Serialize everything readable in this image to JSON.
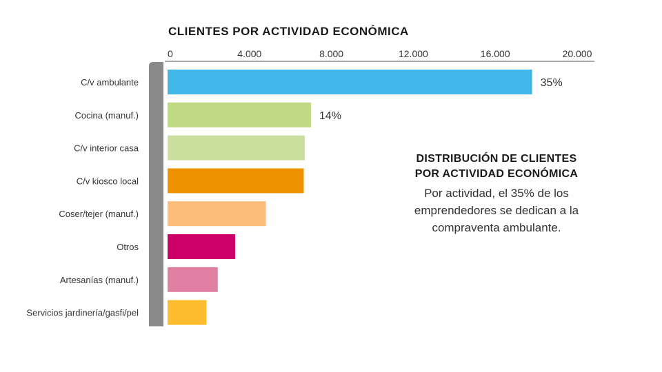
{
  "chart_data": {
    "type": "bar",
    "orientation": "horizontal",
    "title": "CLIENTES POR ACTIVIDAD ECONÓMICA",
    "xlabel": "",
    "ylabel": "",
    "xlim": [
      0,
      20000
    ],
    "x_ticks": [
      0,
      4000,
      8000,
      12000,
      16000,
      20000
    ],
    "x_tick_labels": [
      "0",
      "4.000",
      "8.000",
      "12.000",
      "16.000",
      "20.000"
    ],
    "categories": [
      "C/v ambulante",
      "Cocina (manuf.)",
      "C/v interior casa",
      "C/v kiosco local",
      "Coser/tejer (manuf.)",
      "Otros",
      "Artesanías (manuf.)",
      "Servicios jardinería/gasfi/pel"
    ],
    "values": [
      17800,
      7000,
      6700,
      6650,
      4800,
      3300,
      2450,
      1900
    ],
    "colors": [
      "#41b8e9",
      "#bfd983",
      "#cbe09f",
      "#f09300",
      "#fbbd79",
      "#cc0066",
      "#e07fa2",
      "#fdbd2e"
    ],
    "data_labels": [
      "35%",
      "14%",
      "",
      "",
      "",
      "",
      "",
      ""
    ],
    "axis_position": "top",
    "grid": false,
    "legend": "none"
  },
  "side_panel": {
    "title_line1": "DISTRIBUCIÓN DE CLIENTES",
    "title_line2": "POR ACTIVIDAD ECONÓMICA",
    "body_line1": "Por actividad, el 35% de los",
    "body_line2": "emprendedores se dedican a la",
    "body_line3": "compraventa ambulante."
  },
  "colors": {
    "axis_bar": "#8a8a8a",
    "axis_line": "#555555"
  }
}
